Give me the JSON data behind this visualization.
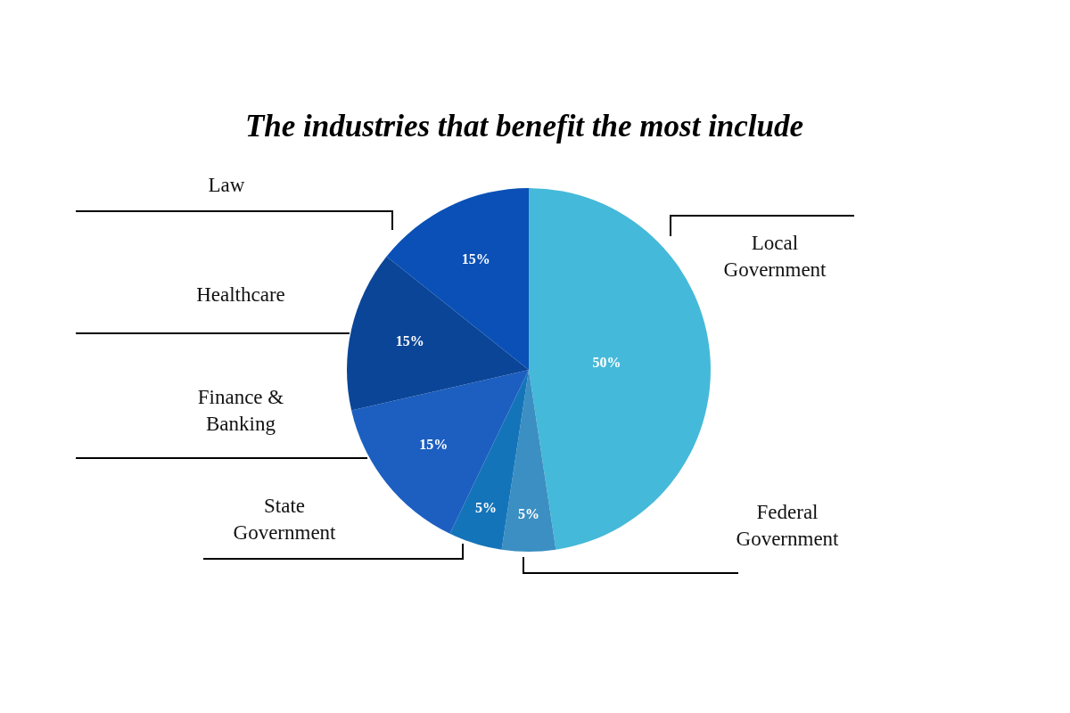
{
  "chart_data": {
    "type": "pie",
    "title": "The industries that benefit the most include",
    "categories": [
      "Local Government",
      "Federal Government",
      "State Government",
      "Finance & Banking",
      "Healthcare",
      "Law"
    ],
    "values": [
      50,
      5,
      5,
      15,
      15,
      15
    ],
    "value_labels": [
      "50%",
      "5%",
      "5%",
      "15%",
      "15%",
      "15%"
    ],
    "colors": [
      "#45b9d9",
      "#3b8fc2",
      "#1474ba",
      "#1d5fc0",
      "#0b4597",
      "#0a50b6"
    ]
  }
}
